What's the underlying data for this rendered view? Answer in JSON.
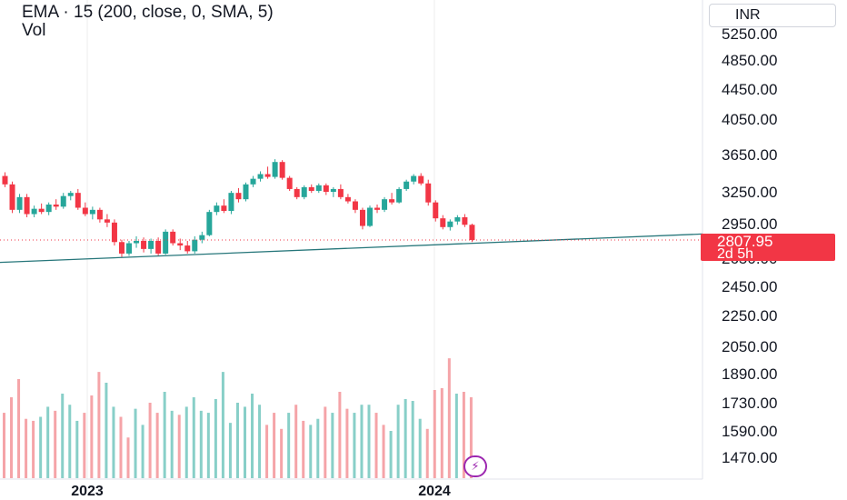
{
  "legend": {
    "line1": "EMA · 15 (200, close, 0, SMA, 5)",
    "line2": "Vol"
  },
  "currency": "INR",
  "last_price": {
    "value": "2807.95",
    "countdown": "2d 5h"
  },
  "colors": {
    "up": "#26a69a",
    "down": "#f23645",
    "vol_up": "#88cfc8",
    "vol_down": "#f5a4a8",
    "ema": "#26767a",
    "grid": "#eeeeee",
    "bolt": "#9c27b0"
  },
  "icons": {
    "bolt": "lightning-bolt-icon"
  },
  "chart_data": {
    "type": "candlestick",
    "y_axis_labels": [
      "5250.00",
      "4850.00",
      "4450.00",
      "4050.00",
      "3650.00",
      "3250.00",
      "2950.00",
      "2650.00",
      "2450.00",
      "2250.00",
      "2050.00",
      "1890.00",
      "1730.00",
      "1590.00",
      "1470.00"
    ],
    "x_axis_labels": [
      "2023",
      "2024"
    ],
    "ema_line": {
      "name": "EMA 15",
      "start": 2620,
      "end": 2860
    },
    "candles": [
      [
        3420,
        3460,
        3300,
        3330
      ],
      [
        3330,
        3360,
        3050,
        3080
      ],
      [
        3080,
        3230,
        3050,
        3200
      ],
      [
        3200,
        3230,
        3010,
        3040
      ],
      [
        3040,
        3120,
        3010,
        3090
      ],
      [
        3090,
        3140,
        3040,
        3060
      ],
      [
        3060,
        3150,
        3030,
        3130
      ],
      [
        3130,
        3180,
        3080,
        3110
      ],
      [
        3110,
        3240,
        3090,
        3210
      ],
      [
        3210,
        3260,
        3170,
        3240
      ],
      [
        3240,
        3280,
        3080,
        3100
      ],
      [
        3100,
        3150,
        3020,
        3040
      ],
      [
        3040,
        3110,
        2990,
        3080
      ],
      [
        3080,
        3100,
        2960,
        2990
      ],
      [
        2990,
        3040,
        2920,
        2960
      ],
      [
        2960,
        2990,
        2760,
        2790
      ],
      [
        2790,
        2810,
        2660,
        2690
      ],
      [
        2690,
        2800,
        2670,
        2780
      ],
      [
        2780,
        2840,
        2740,
        2800
      ],
      [
        2800,
        2830,
        2700,
        2730
      ],
      [
        2730,
        2820,
        2690,
        2800
      ],
      [
        2800,
        2830,
        2670,
        2690
      ],
      [
        2690,
        2900,
        2680,
        2880
      ],
      [
        2880,
        2900,
        2760,
        2780
      ],
      [
        2780,
        2820,
        2720,
        2760
      ],
      [
        2760,
        2800,
        2690,
        2710
      ],
      [
        2710,
        2840,
        2690,
        2810
      ],
      [
        2810,
        2880,
        2780,
        2850
      ],
      [
        2850,
        3080,
        2840,
        3060
      ],
      [
        3060,
        3150,
        3030,
        3120
      ],
      [
        3120,
        3180,
        3050,
        3070
      ],
      [
        3070,
        3260,
        3040,
        3240
      ],
      [
        3240,
        3290,
        3150,
        3180
      ],
      [
        3180,
        3350,
        3160,
        3330
      ],
      [
        3330,
        3420,
        3300,
        3390
      ],
      [
        3390,
        3470,
        3360,
        3440
      ],
      [
        3440,
        3520,
        3390,
        3410
      ],
      [
        3410,
        3600,
        3390,
        3570
      ],
      [
        3570,
        3590,
        3380,
        3400
      ],
      [
        3400,
        3420,
        3260,
        3280
      ],
      [
        3280,
        3300,
        3180,
        3200
      ],
      [
        3200,
        3320,
        3180,
        3300
      ],
      [
        3300,
        3330,
        3240,
        3260
      ],
      [
        3260,
        3340,
        3240,
        3320
      ],
      [
        3320,
        3340,
        3220,
        3250
      ],
      [
        3250,
        3300,
        3200,
        3280
      ],
      [
        3280,
        3330,
        3180,
        3200
      ],
      [
        3200,
        3230,
        3140,
        3160
      ],
      [
        3160,
        3180,
        3050,
        3080
      ],
      [
        3080,
        3100,
        2900,
        2930
      ],
      [
        2930,
        3120,
        2920,
        3100
      ],
      [
        3100,
        3130,
        3050,
        3080
      ],
      [
        3080,
        3200,
        3060,
        3180
      ],
      [
        3180,
        3240,
        3130,
        3150
      ],
      [
        3150,
        3300,
        3140,
        3280
      ],
      [
        3280,
        3380,
        3260,
        3360
      ],
      [
        3360,
        3440,
        3330,
        3420
      ],
      [
        3420,
        3450,
        3320,
        3340
      ],
      [
        3340,
        3380,
        3120,
        3150
      ],
      [
        3150,
        3170,
        2970,
        3000
      ],
      [
        3000,
        3030,
        2900,
        2920
      ],
      [
        2920,
        2990,
        2890,
        2970
      ],
      [
        2970,
        3030,
        2940,
        3010
      ],
      [
        3010,
        3040,
        2920,
        2940
      ],
      [
        2940,
        2950,
        2790,
        2808
      ]
    ],
    "volumes": [
      [
        1680,
        0
      ],
      [
        1760,
        0
      ],
      [
        1860,
        0
      ],
      [
        1650,
        0
      ],
      [
        1640,
        0
      ],
      [
        1660,
        1
      ],
      [
        1710,
        1
      ],
      [
        1690,
        0
      ],
      [
        1780,
        1
      ],
      [
        1720,
        1
      ],
      [
        1640,
        1
      ],
      [
        1680,
        0
      ],
      [
        1770,
        0
      ],
      [
        1900,
        0
      ],
      [
        1840,
        1
      ],
      [
        1710,
        1
      ],
      [
        1660,
        0
      ],
      [
        1560,
        0
      ],
      [
        1700,
        1
      ],
      [
        1620,
        1
      ],
      [
        1730,
        0
      ],
      [
        1680,
        0
      ],
      [
        1790,
        1
      ],
      [
        1690,
        1
      ],
      [
        1670,
        0
      ],
      [
        1710,
        1
      ],
      [
        1760,
        1
      ],
      [
        1690,
        1
      ],
      [
        1680,
        1
      ],
      [
        1750,
        1
      ],
      [
        1900,
        1
      ],
      [
        1630,
        1
      ],
      [
        1730,
        1
      ],
      [
        1710,
        1
      ],
      [
        1780,
        1
      ],
      [
        1720,
        1
      ],
      [
        1620,
        0
      ],
      [
        1680,
        0
      ],
      [
        1600,
        0
      ],
      [
        1680,
        1
      ],
      [
        1720,
        0
      ],
      [
        1640,
        0
      ],
      [
        1620,
        1
      ],
      [
        1650,
        1
      ],
      [
        1710,
        0
      ],
      [
        1680,
        1
      ],
      [
        1790,
        0
      ],
      [
        1700,
        0
      ],
      [
        1680,
        1
      ],
      [
        1720,
        1
      ],
      [
        1720,
        1
      ],
      [
        1680,
        0
      ],
      [
        1620,
        0
      ],
      [
        1590,
        1
      ],
      [
        1720,
        1
      ],
      [
        1750,
        1
      ],
      [
        1740,
        1
      ],
      [
        1650,
        1
      ],
      [
        1600,
        0
      ],
      [
        1800,
        0
      ],
      [
        1810,
        0
      ],
      [
        1980,
        0
      ],
      [
        1780,
        1
      ],
      [
        1790,
        0
      ],
      [
        1760,
        0
      ]
    ]
  }
}
